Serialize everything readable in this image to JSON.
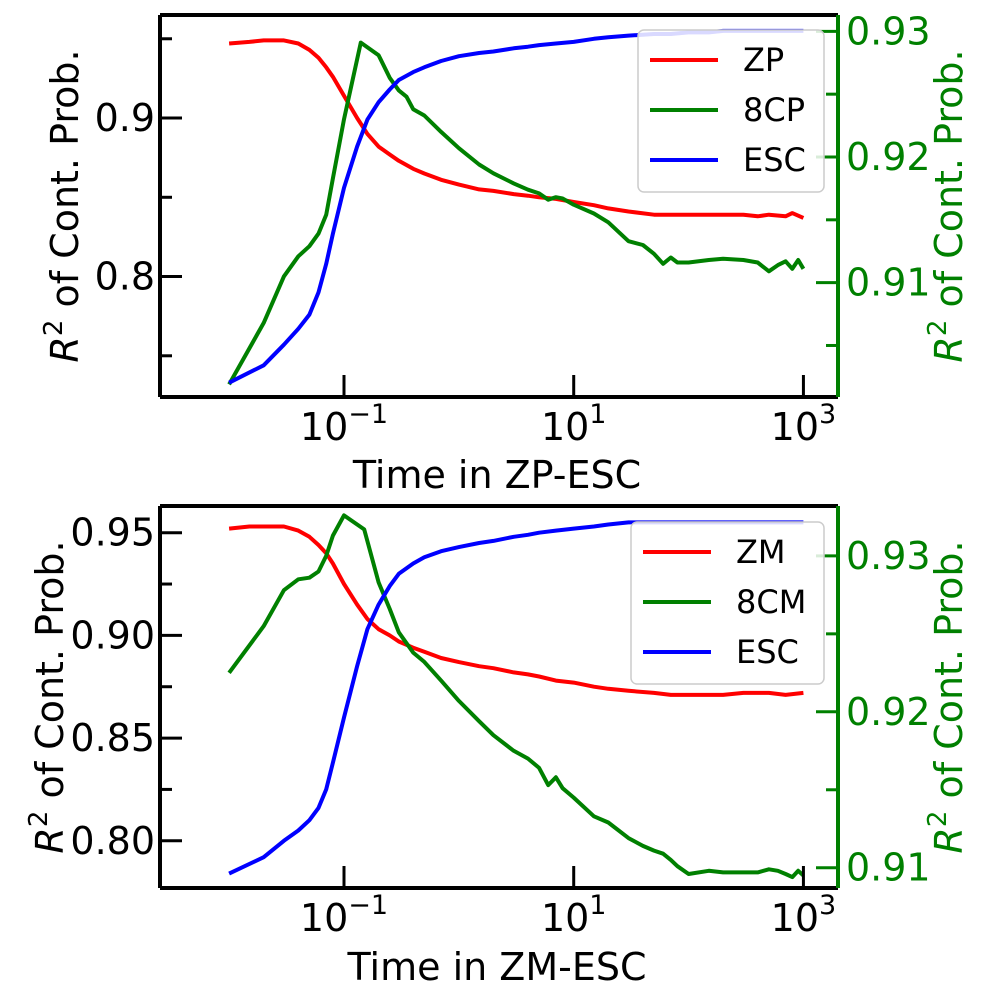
{
  "chart_data": [
    {
      "type": "line",
      "x_scale": "log",
      "xlabel": "Time in ZP-ESC",
      "ylabel": "R² of Cont. Prob.",
      "ylabel_right": "R² of Cont. Prob.",
      "xlim": [
        0.0025,
        2000
      ],
      "ylim": [
        0.724,
        0.965
      ],
      "ylim_right": [
        0.9009,
        0.9313
      ],
      "x_ticks": [
        {
          "value": 0.1,
          "label": "10⁻¹"
        },
        {
          "value": 10,
          "label": "10¹"
        },
        {
          "value": 1000,
          "label": "10³"
        }
      ],
      "y_ticks": [
        {
          "value": 0.8,
          "label": "0.8"
        },
        {
          "value": 0.9,
          "label": "0.9"
        }
      ],
      "y_minor_ticks": [
        0.75,
        0.85,
        0.95
      ],
      "y_ticks_right": [
        {
          "value": 0.91,
          "label": "0.91"
        },
        {
          "value": 0.92,
          "label": "0.92"
        },
        {
          "value": 0.93,
          "label": "0.93"
        }
      ],
      "y_minor_ticks_right": [
        0.905,
        0.915,
        0.925
      ],
      "legend_position": "upper right",
      "right_axis_color": "#008000",
      "series": [
        {
          "name": "ZP",
          "color": "#ff0000",
          "axis": "left",
          "x": [
            0.01,
            0.015,
            0.02,
            0.025,
            0.03,
            0.04,
            0.05,
            0.06,
            0.07,
            0.08,
            0.1,
            0.13,
            0.16,
            0.2,
            0.25,
            0.3,
            0.4,
            0.5,
            0.7,
            1,
            1.5,
            2,
            3,
            4,
            5,
            7,
            10,
            15,
            20,
            30,
            50,
            70,
            100,
            150,
            200,
            300,
            400,
            500,
            700,
            800,
            1000
          ],
          "y": [
            0.947,
            0.948,
            0.949,
            0.949,
            0.949,
            0.947,
            0.943,
            0.938,
            0.932,
            0.926,
            0.914,
            0.9,
            0.89,
            0.882,
            0.877,
            0.873,
            0.868,
            0.865,
            0.861,
            0.858,
            0.855,
            0.854,
            0.852,
            0.851,
            0.85,
            0.849,
            0.847,
            0.845,
            0.843,
            0.841,
            0.839,
            0.839,
            0.839,
            0.839,
            0.839,
            0.839,
            0.838,
            0.839,
            0.838,
            0.84,
            0.837
          ]
        },
        {
          "name": "8CP",
          "color": "#008000",
          "axis": "right",
          "x": [
            0.01,
            0.02,
            0.03,
            0.04,
            0.05,
            0.06,
            0.07,
            0.08,
            0.1,
            0.14,
            0.2,
            0.25,
            0.3,
            0.35,
            0.4,
            0.5,
            0.7,
            1,
            1.5,
            2,
            3,
            4,
            5,
            6,
            7,
            8,
            10,
            15,
            20,
            30,
            40,
            50,
            60,
            70,
            80,
            100,
            150,
            200,
            300,
            400,
            500,
            600,
            700,
            800,
            900,
            1000
          ],
          "y": [
            0.9019,
            0.9068,
            0.9105,
            0.9121,
            0.9129,
            0.9139,
            0.9154,
            0.9183,
            0.923,
            0.9291,
            0.9281,
            0.9263,
            0.9253,
            0.9248,
            0.9238,
            0.9233,
            0.922,
            0.9207,
            0.9194,
            0.9187,
            0.9179,
            0.9174,
            0.9171,
            0.9166,
            0.9168,
            0.9167,
            0.9162,
            0.9155,
            0.9148,
            0.9133,
            0.913,
            0.9123,
            0.9115,
            0.912,
            0.9116,
            0.9116,
            0.9118,
            0.9119,
            0.9118,
            0.9116,
            0.9109,
            0.9114,
            0.9117,
            0.9111,
            0.9118,
            0.9111
          ]
        },
        {
          "name": "ESC",
          "color": "#0000ff",
          "axis": "left",
          "x": [
            0.01,
            0.02,
            0.03,
            0.04,
            0.05,
            0.06,
            0.07,
            0.08,
            0.1,
            0.13,
            0.16,
            0.2,
            0.25,
            0.3,
            0.4,
            0.5,
            0.7,
            1,
            1.5,
            2,
            3,
            4,
            5,
            7,
            10,
            15,
            20,
            30,
            50,
            70,
            100,
            150,
            200,
            300,
            500,
            700,
            1000
          ],
          "y": [
            0.733,
            0.744,
            0.757,
            0.767,
            0.776,
            0.79,
            0.808,
            0.827,
            0.856,
            0.882,
            0.899,
            0.91,
            0.918,
            0.924,
            0.929,
            0.932,
            0.936,
            0.939,
            0.941,
            0.942,
            0.944,
            0.945,
            0.946,
            0.947,
            0.948,
            0.95,
            0.951,
            0.952,
            0.953,
            0.953,
            0.954,
            0.954,
            0.955,
            0.955,
            0.955,
            0.955,
            0.955
          ]
        }
      ]
    },
    {
      "type": "line",
      "x_scale": "log",
      "xlabel": "Time in ZM-ESC",
      "ylabel": "R² of Cont. Prob.",
      "ylabel_right": "R² of Cont. Prob.",
      "xlim": [
        0.0025,
        2000
      ],
      "ylim": [
        0.777,
        0.963
      ],
      "ylim_right": [
        0.9087,
        0.9332
      ],
      "x_ticks": [
        {
          "value": 0.1,
          "label": "10⁻¹"
        },
        {
          "value": 10,
          "label": "10¹"
        },
        {
          "value": 1000,
          "label": "10³"
        }
      ],
      "y_ticks": [
        {
          "value": 0.8,
          "label": "0.80"
        },
        {
          "value": 0.85,
          "label": "0.85"
        },
        {
          "value": 0.9,
          "label": "0.90"
        },
        {
          "value": 0.95,
          "label": "0.95"
        }
      ],
      "y_minor_ticks": [
        0.825,
        0.875,
        0.925
      ],
      "y_ticks_right": [
        {
          "value": 0.91,
          "label": "0.91"
        },
        {
          "value": 0.92,
          "label": "0.92"
        },
        {
          "value": 0.93,
          "label": "0.93"
        }
      ],
      "y_minor_ticks_right": [
        0.915,
        0.925
      ],
      "legend_position": "upper right",
      "right_axis_color": "#008000",
      "series": [
        {
          "name": "ZM",
          "color": "#ff0000",
          "axis": "left",
          "x": [
            0.01,
            0.015,
            0.02,
            0.025,
            0.03,
            0.04,
            0.05,
            0.06,
            0.07,
            0.08,
            0.1,
            0.13,
            0.16,
            0.2,
            0.25,
            0.3,
            0.4,
            0.5,
            0.7,
            1,
            1.5,
            2,
            3,
            4,
            5,
            7,
            10,
            15,
            20,
            30,
            50,
            70,
            100,
            150,
            200,
            300,
            500,
            700,
            1000
          ],
          "y": [
            0.952,
            0.953,
            0.953,
            0.953,
            0.953,
            0.951,
            0.948,
            0.944,
            0.94,
            0.935,
            0.925,
            0.915,
            0.908,
            0.903,
            0.9,
            0.897,
            0.894,
            0.892,
            0.889,
            0.887,
            0.885,
            0.884,
            0.882,
            0.881,
            0.88,
            0.878,
            0.877,
            0.875,
            0.874,
            0.873,
            0.872,
            0.871,
            0.871,
            0.871,
            0.871,
            0.872,
            0.872,
            0.871,
            0.872
          ]
        },
        {
          "name": "8CM",
          "color": "#008000",
          "axis": "right",
          "x": [
            0.01,
            0.02,
            0.03,
            0.04,
            0.05,
            0.06,
            0.07,
            0.08,
            0.1,
            0.15,
            0.2,
            0.25,
            0.3,
            0.35,
            0.4,
            0.5,
            0.7,
            1,
            1.5,
            2,
            3,
            4,
            5,
            6,
            7,
            8,
            10,
            15,
            20,
            30,
            40,
            50,
            60,
            70,
            80,
            100,
            150,
            200,
            300,
            400,
            500,
            600,
            700,
            800,
            900,
            1000
          ],
          "y": [
            0.9225,
            0.9255,
            0.9278,
            0.9285,
            0.9286,
            0.929,
            0.93,
            0.9313,
            0.9326,
            0.9317,
            0.9283,
            0.9266,
            0.9251,
            0.9244,
            0.9238,
            0.9232,
            0.922,
            0.9207,
            0.9194,
            0.9185,
            0.9175,
            0.917,
            0.9164,
            0.9153,
            0.9158,
            0.9151,
            0.9145,
            0.9133,
            0.9129,
            0.9119,
            0.9114,
            0.9111,
            0.9109,
            0.9105,
            0.9101,
            0.9096,
            0.9098,
            0.9097,
            0.9097,
            0.9097,
            0.9099,
            0.9098,
            0.9096,
            0.9094,
            0.9098,
            0.9095
          ]
        },
        {
          "name": "ESC",
          "color": "#0000ff",
          "axis": "left",
          "x": [
            0.01,
            0.02,
            0.03,
            0.04,
            0.05,
            0.06,
            0.07,
            0.08,
            0.1,
            0.13,
            0.16,
            0.2,
            0.25,
            0.3,
            0.4,
            0.5,
            0.7,
            1,
            1.5,
            2,
            3,
            4,
            5,
            7,
            10,
            15,
            20,
            30,
            50,
            70,
            100,
            150,
            200,
            300,
            500,
            700,
            1000
          ],
          "y": [
            0.784,
            0.792,
            0.8,
            0.805,
            0.81,
            0.816,
            0.825,
            0.838,
            0.86,
            0.885,
            0.903,
            0.915,
            0.924,
            0.93,
            0.935,
            0.938,
            0.941,
            0.943,
            0.945,
            0.946,
            0.948,
            0.949,
            0.95,
            0.951,
            0.952,
            0.953,
            0.954,
            0.955,
            0.955,
            0.955,
            0.955,
            0.955,
            0.955,
            0.955,
            0.955,
            0.955,
            0.955
          ]
        }
      ]
    }
  ]
}
